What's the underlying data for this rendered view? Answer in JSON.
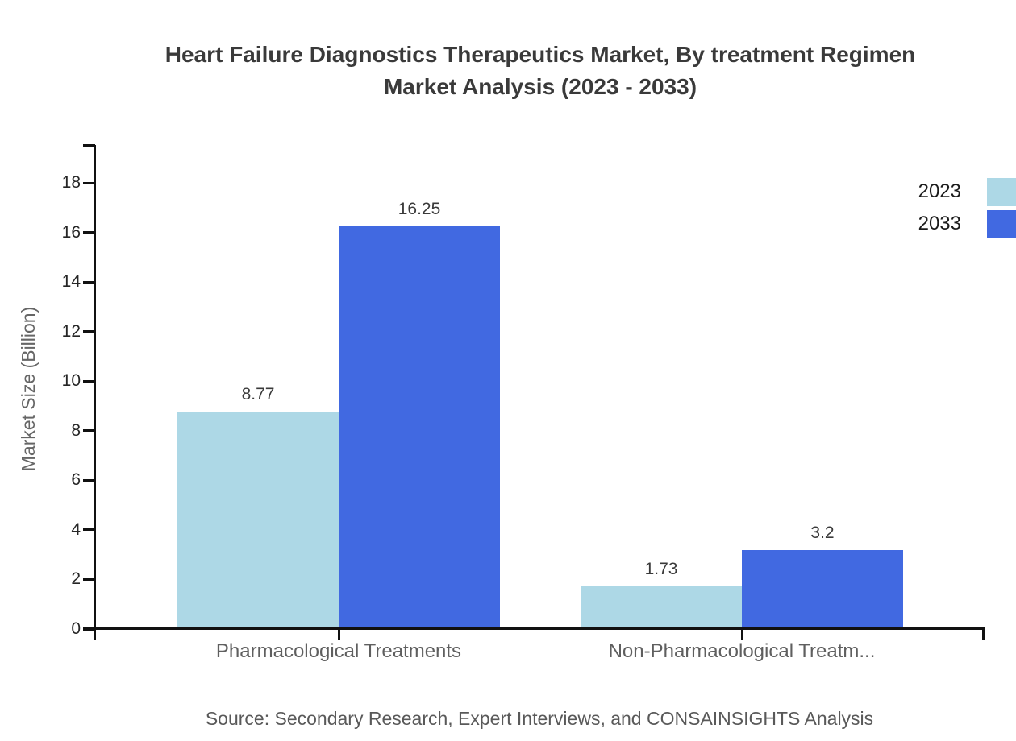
{
  "title_lines": [
    "Heart Failure Diagnostics Therapeutics Market, By treatment Regimen",
    "Market Analysis (2023 - 2033)"
  ],
  "source": "Source: Secondary Research, Expert Interviews, and CONSAINSIGHTS Analysis",
  "colors": {
    "series_2023": "#ADD8E6",
    "series_2033": "#4169E1",
    "axis": "#111111",
    "title_text": "#3a3a3a",
    "label_text": "#5f5f5f"
  },
  "chart_data": {
    "type": "bar",
    "title": "Heart Failure Diagnostics Therapeutics Market, By treatment Regimen Market Analysis (2023 - 2033)",
    "ylabel": "Market Size (Billion)",
    "xlabel": "",
    "categories": [
      "Pharmacological Treatments",
      "Non-Pharmacological Treatm..."
    ],
    "series": [
      {
        "name": "2023",
        "color": "#ADD8E6",
        "values": [
          8.77,
          1.73
        ]
      },
      {
        "name": "2033",
        "color": "#4169E1",
        "values": [
          16.25,
          3.2
        ]
      }
    ],
    "yticks": [
      0,
      2,
      4,
      6,
      8,
      10,
      12,
      14,
      16,
      18
    ],
    "ylim": [
      0,
      19.5
    ],
    "grid": false,
    "legend_position": "top-right"
  }
}
